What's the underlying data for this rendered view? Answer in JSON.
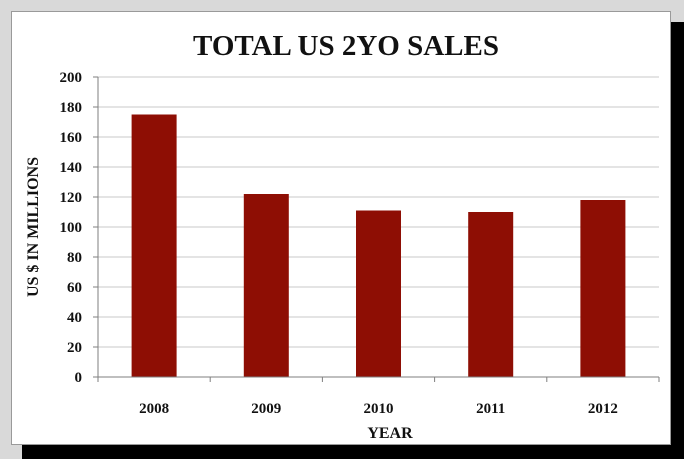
{
  "chart_data": {
    "type": "bar",
    "title": "TOTAL US 2YO SALES",
    "xlabel": "YEAR",
    "ylabel": "US $ IN MILLIONS",
    "categories": [
      "2008",
      "2009",
      "2010",
      "2011",
      "2012"
    ],
    "values": [
      175,
      122,
      111,
      110,
      118
    ],
    "ylim": [
      0,
      200
    ],
    "yticks": [
      0,
      20,
      40,
      60,
      80,
      100,
      120,
      140,
      160,
      180,
      200
    ],
    "grid": true,
    "legend": "none",
    "bar_color": "#8e0e04",
    "grid_color": "#c8c8c8"
  }
}
